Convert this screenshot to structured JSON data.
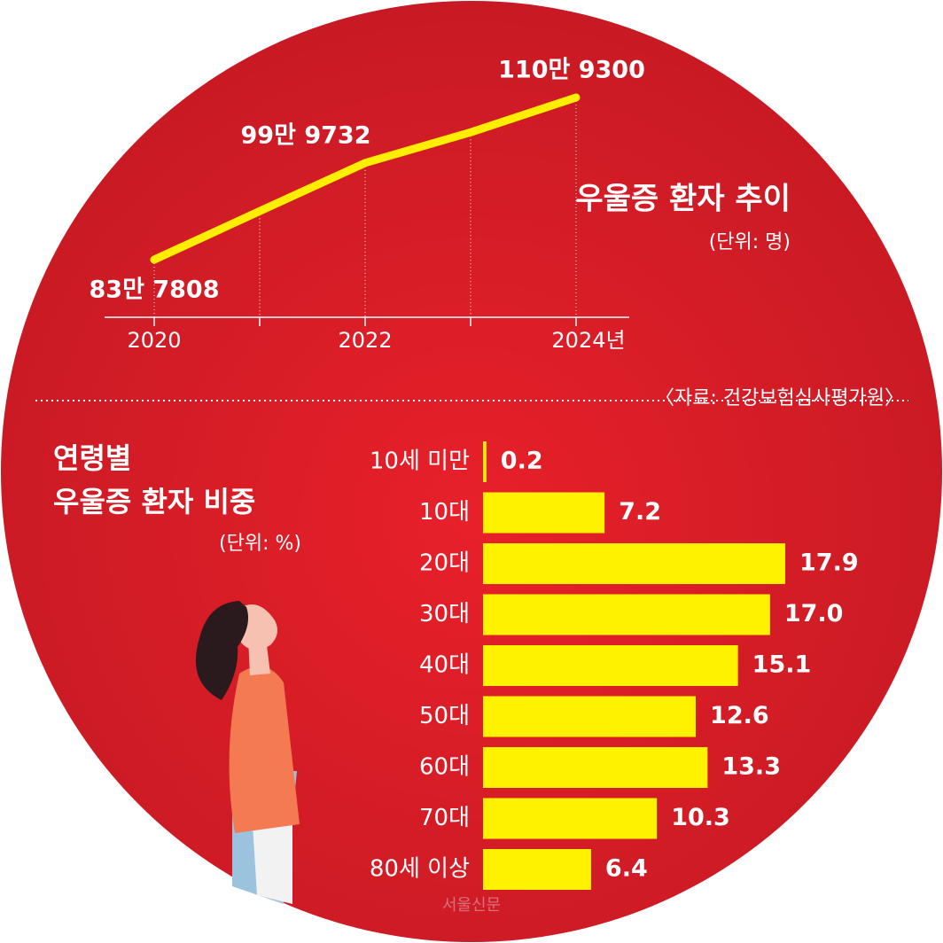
{
  "chart_data": [
    {
      "type": "line",
      "title": "우울증 환자 추이",
      "subtitle": "(단위: 명)",
      "categories": [
        "2020",
        null,
        "2022",
        null,
        "2024년"
      ],
      "values": [
        837808,
        919000,
        999732,
        1051000,
        1109300
      ],
      "value_labels": [
        "83만 7808",
        null,
        "99만 9732",
        null,
        "110만 9300"
      ],
      "color": "#ffee00",
      "source": "〈자료: 건강보험심사평가원〉"
    },
    {
      "type": "bar",
      "title": [
        "연령별",
        "우울증 환자 비중"
      ],
      "subtitle": "(단위: %)",
      "categories": [
        "10세 미만",
        "10대",
        "20대",
        "30대",
        "40대",
        "50대",
        "60대",
        "70대",
        "80세 이상"
      ],
      "values": [
        0.2,
        7.2,
        17.9,
        17.0,
        15.1,
        12.6,
        13.3,
        10.3,
        6.4
      ],
      "value_labels": [
        "0.2",
        "7.2",
        "17.9",
        "17.0",
        "15.1",
        "12.6",
        "13.3",
        "10.3",
        "6.4"
      ],
      "color": "#fff200",
      "credit": "서울신문"
    }
  ]
}
